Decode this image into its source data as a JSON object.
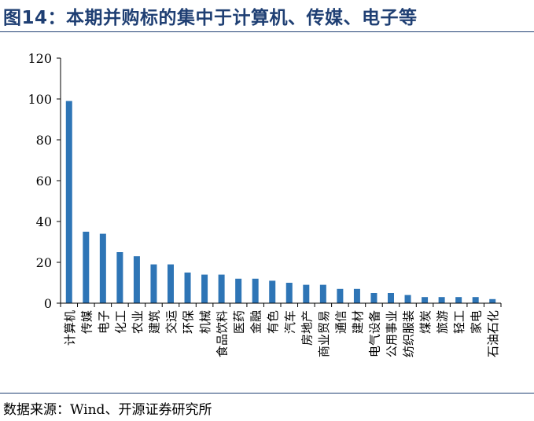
{
  "title": "图14：本期并购标的集中于计算机、传媒、电子等",
  "source": "数据来源：Wind、开源证券研究所",
  "colors": {
    "bar": "#2e75b6",
    "title": "#1f3f73",
    "axis": "#000000"
  },
  "chart_data": {
    "type": "bar",
    "title": "",
    "xlabel": "",
    "ylabel": "",
    "ylim": [
      0,
      120
    ],
    "yticks": [
      0,
      20,
      40,
      60,
      80,
      100,
      120
    ],
    "grid": false,
    "legend": "none",
    "categories": [
      "计算机",
      "传媒",
      "电子",
      "化工",
      "农业",
      "建筑",
      "交运",
      "环保",
      "机械",
      "食品饮料",
      "医药",
      "金融",
      "有色",
      "汽车",
      "房地产",
      "商业贸易",
      "通信",
      "建材",
      "电气设备",
      "公用事业",
      "纺织服装",
      "煤炭",
      "旅游",
      "轻工",
      "家电",
      "石油石化"
    ],
    "values": [
      99,
      35,
      34,
      25,
      23,
      19,
      19,
      15,
      14,
      14,
      12,
      12,
      11,
      10,
      9,
      9,
      7,
      7,
      5,
      5,
      4,
      3,
      3,
      3,
      3,
      2
    ]
  }
}
